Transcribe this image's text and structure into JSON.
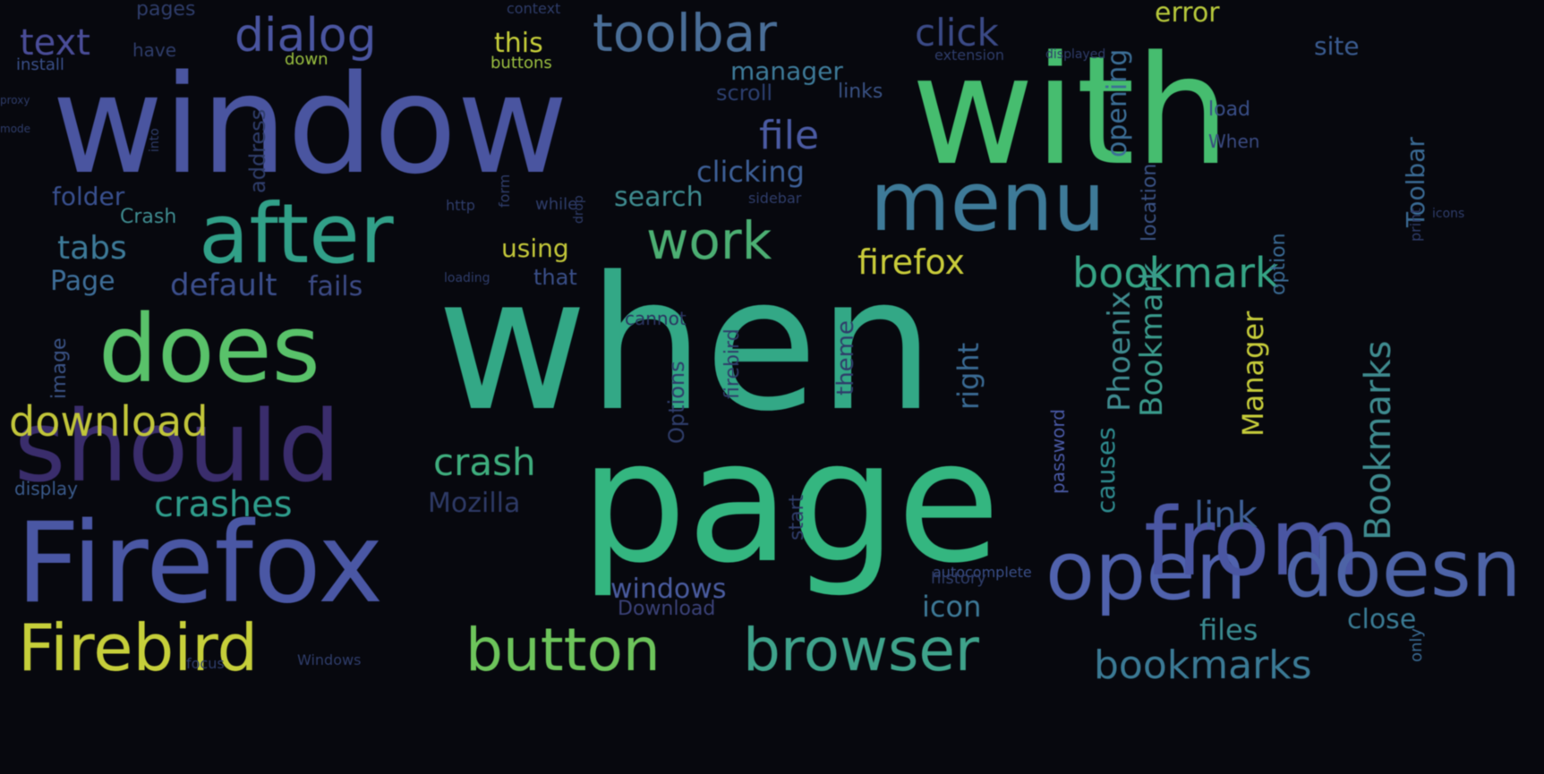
{
  "image": {
    "background": "#07080e",
    "palette": [
      "#4a5aa6",
      "#3f8b8f",
      "#41b378",
      "#6bc65a",
      "#c9d23a",
      "#3b2f6e",
      "#58699c"
    ]
  },
  "words": [
    {
      "text": "window"
    },
    {
      "text": "with"
    },
    {
      "text": "when"
    },
    {
      "text": "page"
    },
    {
      "text": "Firefox"
    },
    {
      "text": "should"
    },
    {
      "text": "does"
    },
    {
      "text": "after"
    },
    {
      "text": "menu"
    },
    {
      "text": "toolbar"
    },
    {
      "text": "dialog"
    },
    {
      "text": "text"
    },
    {
      "text": "click"
    },
    {
      "text": "open"
    },
    {
      "text": "from"
    },
    {
      "text": "doesn"
    },
    {
      "text": "Firebird"
    },
    {
      "text": "button"
    },
    {
      "text": "browser"
    },
    {
      "text": "bookmarks"
    },
    {
      "text": "work"
    },
    {
      "text": "firefox"
    },
    {
      "text": "file"
    },
    {
      "text": "clicking"
    },
    {
      "text": "search"
    },
    {
      "text": "crash"
    },
    {
      "text": "crashes"
    },
    {
      "text": "tabs"
    },
    {
      "text": "folder"
    },
    {
      "text": "Page"
    },
    {
      "text": "default"
    },
    {
      "text": "fails"
    },
    {
      "text": "download"
    },
    {
      "text": "Mozilla"
    },
    {
      "text": "windows"
    },
    {
      "text": "Download"
    },
    {
      "text": "link"
    },
    {
      "text": "icon"
    },
    {
      "text": "files"
    },
    {
      "text": "close"
    },
    {
      "text": "Bookmarks"
    },
    {
      "text": "bookmark"
    },
    {
      "text": "Bookmark"
    },
    {
      "text": "Phoenix"
    },
    {
      "text": "Manager"
    },
    {
      "text": "causes"
    },
    {
      "text": "password"
    },
    {
      "text": "right"
    },
    {
      "text": "theme"
    },
    {
      "text": "manager"
    },
    {
      "text": "scroll"
    },
    {
      "text": "links"
    },
    {
      "text": "error"
    },
    {
      "text": "site"
    },
    {
      "text": "opening"
    },
    {
      "text": "Toolbar"
    },
    {
      "text": "location"
    },
    {
      "text": "load"
    },
    {
      "text": "When"
    },
    {
      "text": "using"
    },
    {
      "text": "that"
    },
    {
      "text": "this"
    },
    {
      "text": "buttons"
    },
    {
      "text": "install"
    },
    {
      "text": "have"
    },
    {
      "text": "pages"
    },
    {
      "text": "down"
    },
    {
      "text": "address"
    },
    {
      "text": "Crash"
    },
    {
      "text": "display"
    },
    {
      "text": "image"
    },
    {
      "text": "Options"
    },
    {
      "text": "firebird"
    },
    {
      "text": "start"
    },
    {
      "text": "history"
    },
    {
      "text": "autocomplete"
    },
    {
      "text": "only"
    },
    {
      "text": "option"
    },
    {
      "text": "while"
    },
    {
      "text": "into"
    },
    {
      "text": "context"
    },
    {
      "text": "extension"
    },
    {
      "text": "form"
    },
    {
      "text": "drop"
    },
    {
      "text": "cannot"
    },
    {
      "text": "sidebar"
    },
    {
      "text": "loading"
    },
    {
      "text": "Windows"
    },
    {
      "text": "focus"
    },
    {
      "text": "icons"
    },
    {
      "text": "displayed"
    },
    {
      "text": "print"
    },
    {
      "text": "http"
    },
    {
      "text": "proxy"
    },
    {
      "text": "mode"
    }
  ]
}
